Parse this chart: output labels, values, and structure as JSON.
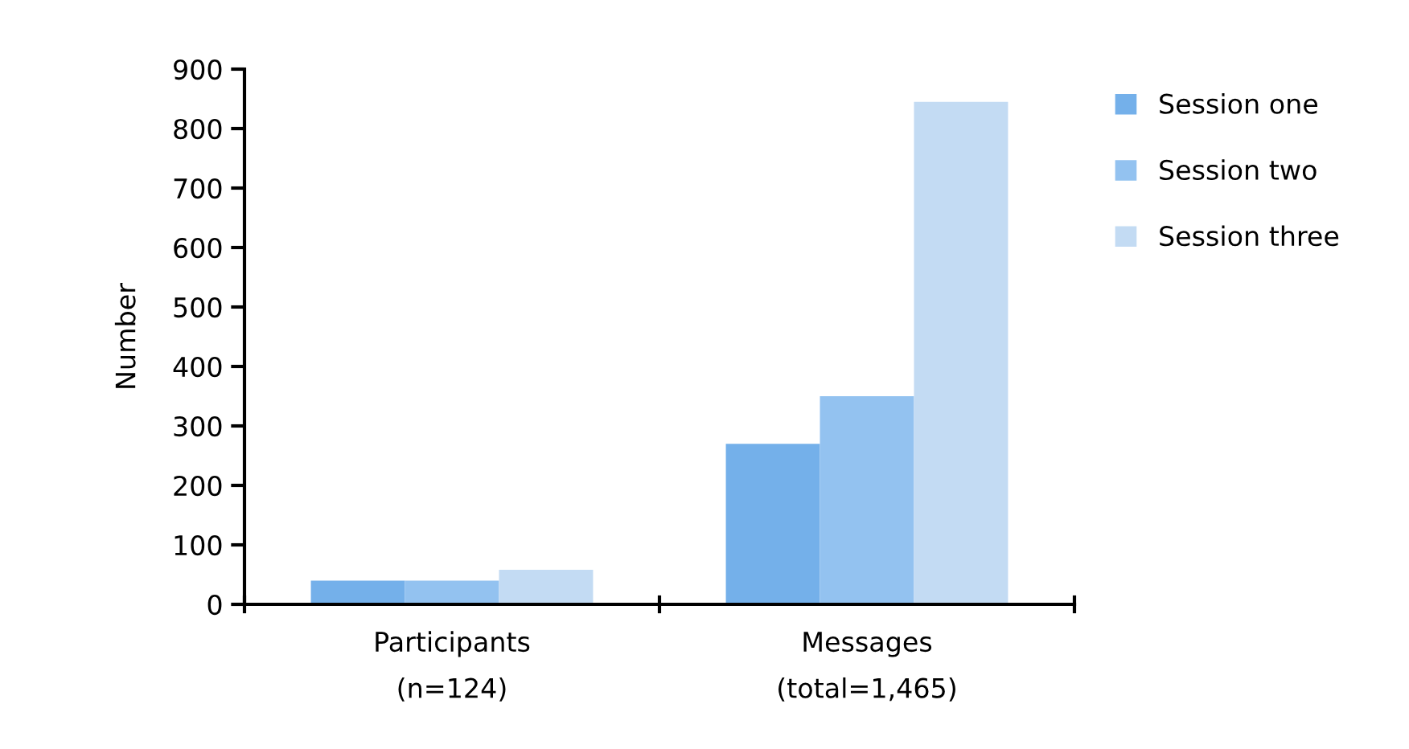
{
  "chart_data": {
    "type": "bar",
    "ylabel": "Number",
    "categories": [
      "Participants\n(n=124)",
      "Messages\n(total=1,465)"
    ],
    "series": [
      {
        "name": "Session one",
        "color": "#74b0ea",
        "values": [
          40,
          270
        ]
      },
      {
        "name": "Session two",
        "color": "#93c2f0",
        "values": [
          40,
          350
        ]
      },
      {
        "name": "Session three",
        "color": "#c3dbf3",
        "values": [
          58,
          845
        ]
      }
    ],
    "ylim": [
      0,
      900
    ],
    "yticks": [
      0,
      100,
      200,
      300,
      400,
      500,
      600,
      700,
      800,
      900
    ],
    "grid": false,
    "legend": "right"
  }
}
